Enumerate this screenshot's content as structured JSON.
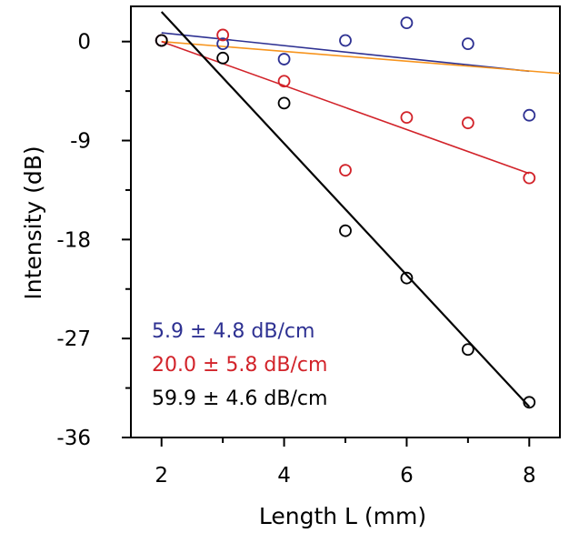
{
  "chart_data": {
    "type": "scatter",
    "title": "",
    "xlabel": "Length L (mm)",
    "ylabel": "Intensity (dB)",
    "xlim": [
      1.5,
      8.5
    ],
    "ylim": [
      -36,
      3.2
    ],
    "xticks": [
      2,
      4,
      6,
      8
    ],
    "xtick_labels": [
      "2",
      "4",
      "6",
      "8"
    ],
    "yticks": [
      0,
      -9,
      -18,
      -27,
      -36
    ],
    "ytick_labels": [
      "0",
      "-9",
      "-18",
      "-27",
      "-36"
    ],
    "grid": false,
    "legend_position": "bottom-left",
    "series": [
      {
        "name": "5.9 ± 4.8 dB/cm",
        "color": "#2e3192",
        "x": [
          2,
          3,
          4,
          5,
          6,
          7,
          8
        ],
        "y": [
          0.1,
          -0.2,
          -1.6,
          0.1,
          1.7,
          -0.2,
          -6.7
        ],
        "fit": {
          "x": [
            2,
            8
          ],
          "y": [
            0.8,
            -2.7
          ]
        }
      },
      {
        "name": "orange fit",
        "color": "#f7941d",
        "x": [],
        "y": [],
        "fit": {
          "x": [
            2,
            8.5
          ],
          "y": [
            0,
            -2.9
          ]
        }
      },
      {
        "name": "20.0 ± 5.8 dB/cm",
        "color": "#d2232a",
        "x": [
          2,
          3,
          4,
          5,
          6,
          7,
          8
        ],
        "y": [
          0.1,
          0.6,
          -3.6,
          -11.7,
          -6.9,
          -7.4,
          -12.4
        ],
        "fit": {
          "x": [
            2,
            8
          ],
          "y": [
            0.0,
            -12.0
          ]
        }
      },
      {
        "name": "59.9 ± 4.6 dB/cm",
        "color": "#000000",
        "x": [
          2,
          3,
          4,
          5,
          6,
          7,
          8
        ],
        "y": [
          0.1,
          -1.5,
          -5.6,
          -17.2,
          -21.5,
          -28.0,
          -32.8
        ],
        "fit": {
          "x": [
            2,
            8
          ],
          "y": [
            2.7,
            -33.2
          ]
        }
      }
    ],
    "legend": [
      {
        "label": "5.9 ± 4.8 dB/cm",
        "color": "#2e3192"
      },
      {
        "label": "20.0 ± 5.8 dB/cm",
        "color": "#d2232a"
      },
      {
        "label": "59.9 ± 4.6 dB/cm",
        "color": "#000000"
      }
    ]
  }
}
